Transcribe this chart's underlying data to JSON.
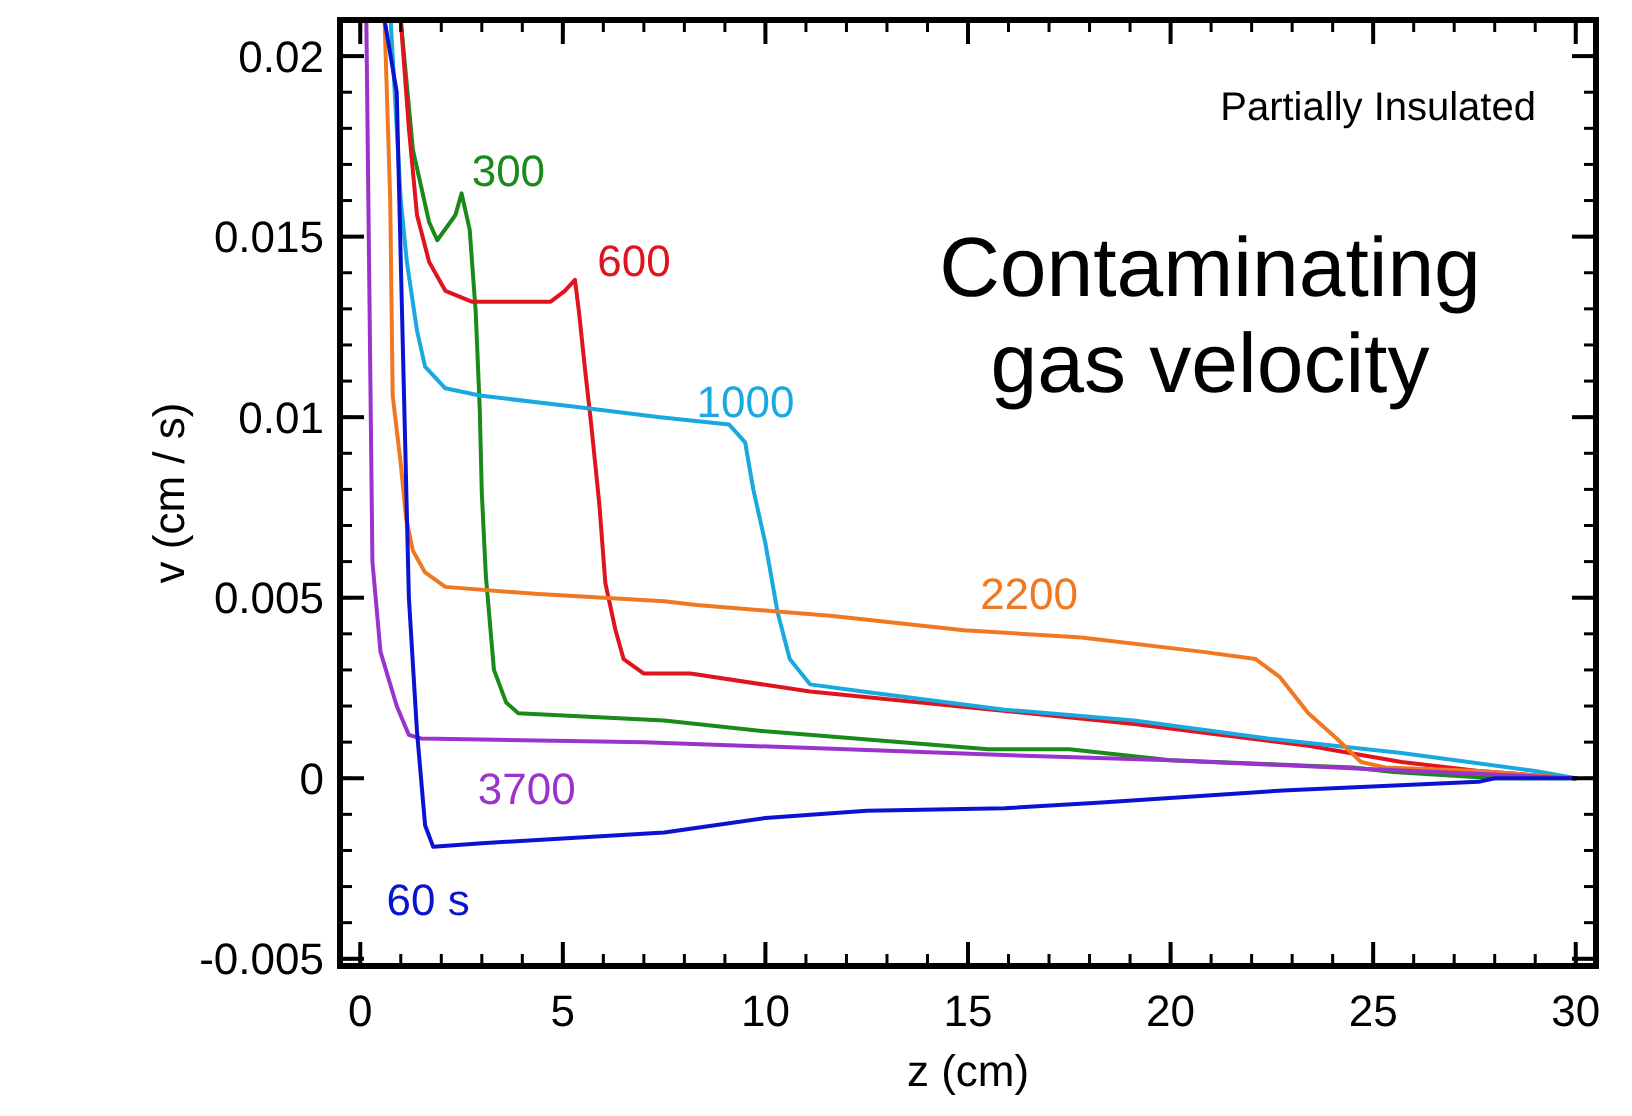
{
  "chart_data": {
    "type": "line",
    "title": "Contaminating gas velocity",
    "xlabel": "z (cm)",
    "ylabel": "v (cm / s)",
    "annotations": [
      "Partially Insulated"
    ],
    "xlim": [
      -0.5,
      30.5
    ],
    "xticks": [
      0,
      5,
      10,
      15,
      20,
      25,
      30
    ],
    "ylim": [
      -0.0052,
      0.021
    ],
    "yticks": [
      -0.005,
      0,
      0.005,
      0.01,
      0.015,
      0.02
    ],
    "grid": false,
    "marker": "none",
    "line_style": "solid",
    "series": [
      {
        "name": "300",
        "color": "#1a8a1a",
        "x": [
          1.0,
          1.3,
          1.7,
          1.9,
          2.35,
          2.5,
          2.7,
          2.85,
          2.95,
          3.0,
          3.1,
          3.3,
          3.6,
          3.9,
          7.5,
          10,
          15.5,
          17.5,
          20,
          24.5,
          25.5,
          28,
          30
        ],
        "values": [
          0.021,
          0.0174,
          0.0154,
          0.0149,
          0.0156,
          0.0162,
          0.0152,
          0.0129,
          0.0102,
          0.0079,
          0.0056,
          0.003,
          0.0021,
          0.0018,
          0.0016,
          0.0013,
          0.0008,
          0.0008,
          0.0005,
          0.0003,
          0.00017,
          0,
          0
        ]
      },
      {
        "name": "600",
        "color": "#e0141e",
        "x": [
          1.0,
          1.2,
          1.4,
          1.7,
          2.1,
          2.75,
          4.1,
          4.7,
          5.05,
          5.3,
          5.4,
          5.55,
          5.7,
          5.9,
          6.05,
          6.3,
          6.5,
          7.0,
          8.15,
          11.1,
          16.5,
          19.1,
          23.4,
          25.7,
          27.6,
          30
        ],
        "values": [
          0.021,
          0.018,
          0.0156,
          0.0143,
          0.0135,
          0.0132,
          0.0132,
          0.0132,
          0.0135,
          0.0138,
          0.0129,
          0.0113,
          0.0098,
          0.0076,
          0.0054,
          0.0041,
          0.0033,
          0.0029,
          0.0029,
          0.0024,
          0.0018,
          0.0015,
          0.0009,
          0.00045,
          0.0002,
          0
        ]
      },
      {
        "name": "1000",
        "color": "#1aa8e0",
        "x": [
          0.75,
          1.0,
          1.15,
          1.4,
          1.6,
          2.1,
          2.95,
          5.2,
          7.4,
          9.1,
          9.5,
          9.7,
          10,
          10.3,
          10.6,
          11.1,
          12.4,
          15.9,
          19.1,
          22.4,
          25.7,
          29,
          30
        ],
        "values": [
          0.021,
          0.016,
          0.0143,
          0.0124,
          0.0114,
          0.0108,
          0.0106,
          0.0103,
          0.01,
          0.0098,
          0.0093,
          0.008,
          0.0065,
          0.0046,
          0.0033,
          0.0026,
          0.0024,
          0.0019,
          0.0016,
          0.0011,
          0.0007,
          0.0002,
          0
        ]
      },
      {
        "name": "2200",
        "color": "#f07820",
        "x": [
          0.6,
          0.74,
          0.8,
          1.0,
          1.13,
          1.3,
          1.6,
          2.1,
          4.4,
          7.5,
          8.3,
          11.6,
          14.9,
          17.8,
          20.8,
          22.1,
          22.7,
          23.4,
          24.1,
          24.7,
          25.3,
          27.6,
          30
        ],
        "values": [
          0.021,
          0.016,
          0.0106,
          0.0087,
          0.0072,
          0.0063,
          0.0057,
          0.0053,
          0.0051,
          0.0049,
          0.0048,
          0.0045,
          0.0041,
          0.0039,
          0.0035,
          0.0033,
          0.0028,
          0.0018,
          0.0011,
          0.00045,
          0.0003,
          0.0002,
          0
        ]
      },
      {
        "name": "3700",
        "color": "#9933cc",
        "x": [
          0.15,
          0.3,
          0.5,
          0.9,
          1.2,
          1.5,
          7,
          12,
          17,
          20,
          25,
          30
        ],
        "values": [
          0.021,
          0.006,
          0.0035,
          0.002,
          0.0012,
          0.0011,
          0.001,
          0.0008,
          0.0006,
          0.0005,
          0.00025,
          0
        ]
      },
      {
        "name": "60 s",
        "color": "#0a14d0",
        "x": [
          0.6,
          0.9,
          1.2,
          1.4,
          1.6,
          1.8,
          3,
          7.5,
          10,
          12.5,
          15.9,
          18.3,
          22.9,
          27.6,
          28,
          30
        ],
        "values": [
          0.021,
          0.019,
          0.005,
          0.0013,
          -0.0013,
          -0.0019,
          -0.0018,
          -0.0015,
          -0.0011,
          -0.0009,
          -0.00083,
          -0.00067,
          -0.00033,
          -0.0001,
          0,
          0
        ]
      }
    ]
  }
}
